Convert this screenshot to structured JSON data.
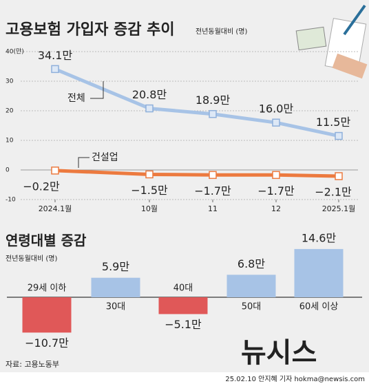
{
  "chart_data": [
    {
      "type": "line",
      "title": "고용보험 가입자 증감 추이",
      "subtitle": "전년동월대비 (명)",
      "categories": [
        "2024.1월",
        "10월",
        "11",
        "12",
        "2025.1월"
      ],
      "ylim": [
        -10,
        40
      ],
      "yticks": [
        -10,
        0,
        10,
        20,
        30,
        {
          "value": 40,
          "label": "40(만)"
        }
      ],
      "grid": true,
      "series": [
        {
          "name": "전체",
          "color": "#a7c3e6",
          "values": [
            34.1,
            20.8,
            18.9,
            16.0,
            11.5
          ],
          "value_labels": [
            "34.1만",
            "20.8만",
            "18.9만",
            "16.0만",
            "11.5만"
          ]
        },
        {
          "name": "건설업",
          "color": "#ec7a3f",
          "values": [
            -0.2,
            -1.5,
            -1.7,
            -1.7,
            -2.1
          ],
          "value_labels": [
            "−0.2만",
            "−1.5만",
            "−1.7만",
            "−1.7만",
            "−2.1만"
          ]
        }
      ]
    },
    {
      "type": "bar",
      "title": "연령대별 증감",
      "subtitle": "전년동월대비 (명)",
      "categories": [
        "29세 이하",
        "30대",
        "40대",
        "50대",
        "60세 이상"
      ],
      "values": [
        -10.7,
        5.9,
        -5.1,
        6.8,
        14.6
      ],
      "value_labels": [
        "−10.7만",
        "5.9만",
        "−5.1만",
        "6.8만",
        "14.6만"
      ],
      "colors": [
        "#e05858",
        "#a7c3e6",
        "#e05858",
        "#a7c3e6",
        "#a7c3e6"
      ]
    }
  ],
  "source": "자료: 고용노동부",
  "watermark": "뉴시스",
  "credit": "25.02.10 안지혜 기자 hokma@newsis.com"
}
